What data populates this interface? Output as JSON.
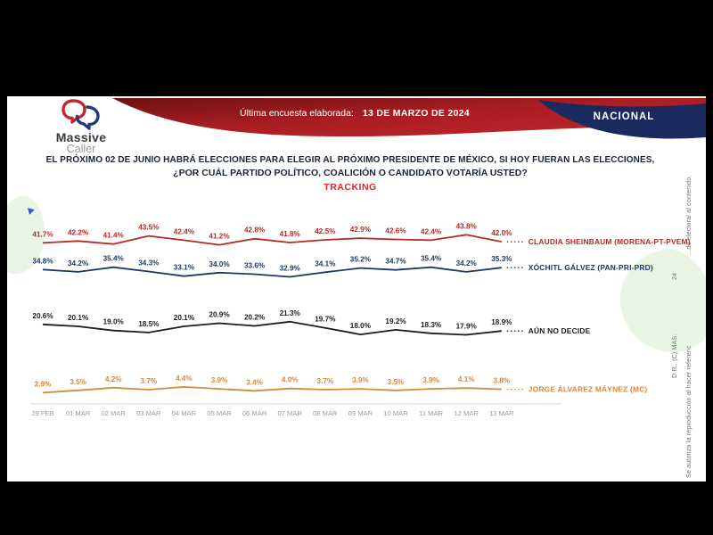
{
  "header": {
    "logo_line1": "Massive",
    "logo_line2": "Caller",
    "banner_label": "Última encuesta elaborada:",
    "banner_date": "13 DE MARZO DE 2024",
    "region_badge": "NACIONAL"
  },
  "title": {
    "line1": "EL PRÓXIMO 02 DE JUNIO HABRÁ ELECCIONES PARA ELEGIR AL PRÓXIMO PRESIDENTE DE MÉXICO, SI HOY FUERAN LAS ELECCIONES,",
    "line2": "¿POR CUÁL PARTIDO POLÍTICO, COALICIÓN O CANDIDATO VOTARÍA USTED?",
    "line3": "TRACKING"
  },
  "chart_data": {
    "type": "line",
    "title": "TRACKING",
    "value_suffix": "%",
    "ylim": [
      0,
      45
    ],
    "grid": false,
    "legend_position": "right-of-lines",
    "categories": [
      "29 FEB",
      "01 MAR",
      "02 MAR",
      "03 MAR",
      "04 MAR",
      "05 MAR",
      "06 MAR",
      "07 MAR",
      "08 MAR",
      "09 MAR",
      "10 MAR",
      "11 MAR",
      "12 MAR",
      "13 MAR"
    ],
    "series": [
      {
        "name": "CLAUDIA SHEINBAUM (MORENA-PT-PVEM)",
        "color": "#b32b27",
        "values": [
          41.7,
          42.2,
          41.4,
          43.5,
          42.4,
          41.2,
          42.8,
          41.8,
          42.5,
          42.9,
          42.6,
          42.4,
          43.8,
          42.0
        ]
      },
      {
        "name": "XÓCHITL GÁLVEZ (PAN-PRI-PRD)",
        "color": "#1f3864",
        "values": [
          34.8,
          34.2,
          35.4,
          34.3,
          33.1,
          34.0,
          33.6,
          32.9,
          34.1,
          35.2,
          34.7,
          35.4,
          34.2,
          35.3
        ]
      },
      {
        "name": "AÚN NO DECIDE",
        "color": "#1c1c1c",
        "values": [
          20.6,
          20.1,
          19.0,
          18.5,
          20.1,
          20.9,
          20.2,
          21.3,
          19.7,
          18.0,
          19.2,
          18.3,
          17.9,
          18.9
        ]
      },
      {
        "name": "JORGE ÁLVAREZ MÁYNEZ (MC)",
        "color": "#d6883c",
        "values": [
          2.9,
          3.5,
          4.2,
          3.7,
          4.4,
          3.9,
          3.4,
          4.0,
          3.7,
          3.9,
          3.5,
          3.9,
          4.1,
          3.8
        ]
      }
    ]
  },
  "side_notes": {
    "dr_line": "D.R., (C) MAS.",
    "num": "24",
    "auth_lower": "Se autoriza la reproducción al hacer referenc",
    "auth_upper": "...da electoral al contenido."
  },
  "colors": {
    "banner_red_dark": "#6e1112",
    "banner_red": "#c1272d",
    "navy": "#1b2a5e",
    "tracking_red": "#e3242b",
    "axis_line": "#d9d9d9",
    "axis_text": "#9a9a9a"
  }
}
